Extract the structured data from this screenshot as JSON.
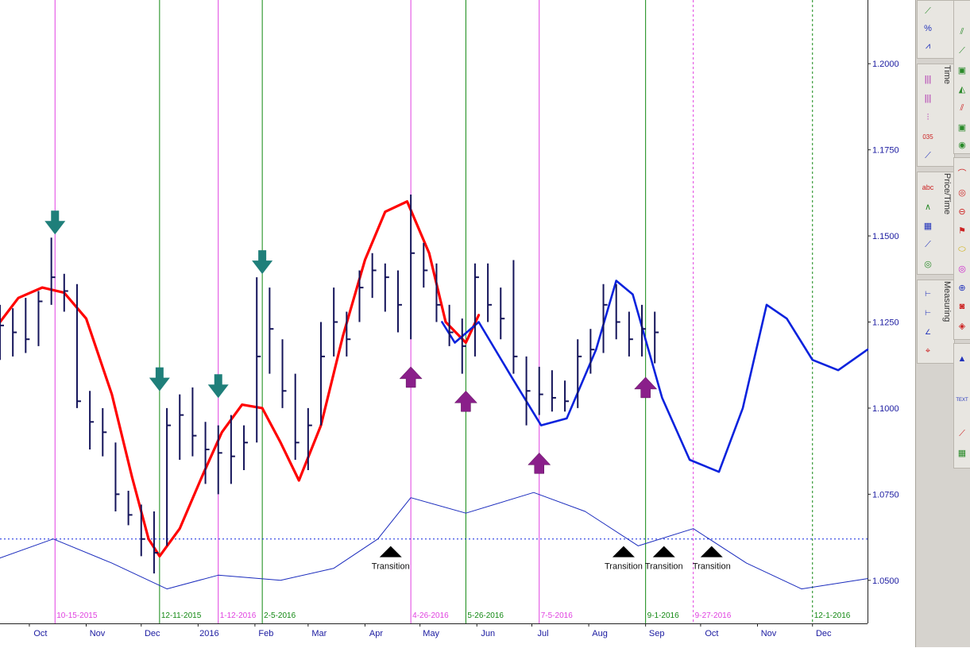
{
  "chart_data": {
    "type": "ohlc",
    "price_axis": {
      "ticks": [
        "1.2000",
        "1.1750",
        "1.1500",
        "1.1250",
        "1.1000",
        "1.0750",
        "1.0500"
      ],
      "ylim": [
        1.0375,
        1.2185
      ]
    },
    "time_axis": {
      "ticks": [
        "Oct",
        "Nov",
        "Dec",
        "2016",
        "Feb",
        "Mar",
        "Apr",
        "May",
        "Jun",
        "Jul",
        "Aug",
        "Sep",
        "Oct",
        "Nov",
        "Dec"
      ],
      "range": [
        "2015-09-15",
        "2016-12-31"
      ]
    },
    "cycle_markers": [
      {
        "date": "2015-10-15",
        "label": "10-15-2015",
        "color": "#e040e0",
        "style": "solid"
      },
      {
        "date": "2015-12-11",
        "label": "12-11-2015",
        "color": "#118811",
        "style": "solid"
      },
      {
        "date": "2016-01-12",
        "label": "1-12-2016",
        "color": "#e040e0",
        "style": "solid"
      },
      {
        "date": "2016-02-05",
        "label": "2-5-2016",
        "color": "#118811",
        "style": "solid"
      },
      {
        "date": "2016-04-26",
        "label": "4-26-2016",
        "color": "#e040e0",
        "style": "solid"
      },
      {
        "date": "2016-05-26",
        "label": "5-26-2016",
        "color": "#118811",
        "style": "solid"
      },
      {
        "date": "2016-07-05",
        "label": "7-5-2016",
        "color": "#e040e0",
        "style": "solid"
      },
      {
        "date": "2016-09-01",
        "label": "9-1-2016",
        "color": "#118811",
        "style": "solid"
      },
      {
        "date": "2016-09-27",
        "label": "9-27-2016",
        "color": "#e040e0",
        "style": "dashed"
      },
      {
        "date": "2016-12-01",
        "label": "12-1-2016",
        "color": "#118811",
        "style": "dashed"
      }
    ],
    "ohlc_weekly": [
      [
        "2015-09-15",
        1.13,
        1.114,
        1.124
      ],
      [
        "2015-09-22",
        1.129,
        1.115,
        1.122
      ],
      [
        "2015-09-29",
        1.132,
        1.116,
        1.12
      ],
      [
        "2015-10-06",
        1.134,
        1.118,
        1.131
      ],
      [
        "2015-10-13",
        1.1495,
        1.13,
        1.138
      ],
      [
        "2015-10-20",
        1.139,
        1.128,
        1.134
      ],
      [
        "2015-10-27",
        1.136,
        1.1,
        1.102
      ],
      [
        "2015-11-03",
        1.105,
        1.088,
        1.096
      ],
      [
        "2015-11-10",
        1.1,
        1.086,
        1.093
      ],
      [
        "2015-11-17",
        1.09,
        1.07,
        1.075
      ],
      [
        "2015-11-24",
        1.076,
        1.066,
        1.069
      ],
      [
        "2015-12-01",
        1.072,
        1.057,
        1.062
      ],
      [
        "2015-12-08",
        1.07,
        1.052,
        1.058
      ],
      [
        "2015-12-15",
        1.1,
        1.06,
        1.095
      ],
      [
        "2015-12-22",
        1.104,
        1.085,
        1.098
      ],
      [
        "2015-12-29",
        1.106,
        1.086,
        1.092
      ],
      [
        "2016-01-05",
        1.096,
        1.078,
        1.088
      ],
      [
        "2016-01-12",
        1.095,
        1.075,
        1.087
      ],
      [
        "2016-01-19",
        1.098,
        1.078,
        1.086
      ],
      [
        "2016-01-26",
        1.095,
        1.082,
        1.09
      ],
      [
        "2016-02-02",
        1.138,
        1.09,
        1.115
      ],
      [
        "2016-02-09",
        1.135,
        1.11,
        1.123
      ],
      [
        "2016-02-16",
        1.12,
        1.1,
        1.105
      ],
      [
        "2016-02-23",
        1.11,
        1.085,
        1.09
      ],
      [
        "2016-03-01",
        1.1,
        1.082,
        1.095
      ],
      [
        "2016-03-08",
        1.125,
        1.095,
        1.115
      ],
      [
        "2016-03-15",
        1.135,
        1.115,
        1.125
      ],
      [
        "2016-03-22",
        1.128,
        1.115,
        1.12
      ],
      [
        "2016-03-29",
        1.14,
        1.125,
        1.135
      ],
      [
        "2016-04-05",
        1.145,
        1.132,
        1.14
      ],
      [
        "2016-04-12",
        1.142,
        1.128,
        1.138
      ],
      [
        "2016-04-19",
        1.14,
        1.122,
        1.13
      ],
      [
        "2016-04-26",
        1.162,
        1.12,
        1.145
      ],
      [
        "2016-05-03",
        1.148,
        1.135,
        1.14
      ],
      [
        "2016-05-10",
        1.142,
        1.125,
        1.13
      ],
      [
        "2016-05-17",
        1.13,
        1.118,
        1.122
      ],
      [
        "2016-05-24",
        1.126,
        1.11,
        1.118
      ],
      [
        "2016-05-31",
        1.142,
        1.115,
        1.138
      ],
      [
        "2016-06-07",
        1.142,
        1.125,
        1.13
      ],
      [
        "2016-06-14",
        1.135,
        1.12,
        1.126
      ],
      [
        "2016-06-21",
        1.143,
        1.11,
        1.115
      ],
      [
        "2016-06-28",
        1.115,
        1.095,
        1.105
      ],
      [
        "2016-07-05",
        1.112,
        1.098,
        1.104
      ],
      [
        "2016-07-12",
        1.111,
        1.099,
        1.103
      ],
      [
        "2016-07-19",
        1.108,
        1.099,
        1.102
      ],
      [
        "2016-07-26",
        1.12,
        1.1,
        1.115
      ],
      [
        "2016-08-02",
        1.123,
        1.11,
        1.117
      ],
      [
        "2016-08-09",
        1.136,
        1.116,
        1.13
      ],
      [
        "2016-08-16",
        1.136,
        1.12,
        1.125
      ],
      [
        "2016-08-23",
        1.128,
        1.115,
        1.12
      ],
      [
        "2016-08-30",
        1.13,
        1.115,
        1.123
      ],
      [
        "2016-09-06",
        1.128,
        1.113,
        1.122
      ]
    ],
    "series": [
      {
        "name": "",
        "color": "#ff0000",
        "width": 3.2,
        "points": [
          [
            "2015-09-15",
            1.125
          ],
          [
            "2015-09-25",
            1.132
          ],
          [
            "2015-10-08",
            1.135
          ],
          [
            "2015-10-20",
            1.1335
          ],
          [
            "2015-11-01",
            1.126
          ],
          [
            "2015-11-15",
            1.104
          ],
          [
            "2015-11-26",
            1.08
          ],
          [
            "2015-12-05",
            1.062
          ],
          [
            "2015-12-11",
            1.057
          ],
          [
            "2015-12-22",
            1.065
          ],
          [
            "2016-01-03",
            1.08
          ],
          [
            "2016-01-14",
            1.093
          ],
          [
            "2016-01-25",
            1.101
          ],
          [
            "2016-02-05",
            1.1
          ],
          [
            "2016-02-15",
            1.09
          ],
          [
            "2016-02-25",
            1.079
          ],
          [
            "2016-03-08",
            1.095
          ],
          [
            "2016-03-20",
            1.121
          ],
          [
            "2016-04-01",
            1.143
          ],
          [
            "2016-04-12",
            1.157
          ],
          [
            "2016-04-24",
            1.16
          ],
          [
            "2016-05-06",
            1.145
          ],
          [
            "2016-05-15",
            1.125
          ],
          [
            "2016-05-26",
            1.119
          ],
          [
            "2016-06-02",
            1.127
          ]
        ]
      },
      {
        "name": "",
        "color": "#0a22dd",
        "width": 2.6,
        "points": [
          [
            "2016-05-13",
            1.125
          ],
          [
            "2016-05-20",
            1.119
          ],
          [
            "2016-06-02",
            1.125
          ],
          [
            "2016-06-20",
            1.109
          ],
          [
            "2016-07-06",
            1.095
          ],
          [
            "2016-07-20",
            1.097
          ],
          [
            "2016-08-05",
            1.117
          ],
          [
            "2016-08-16",
            1.137
          ],
          [
            "2016-08-25",
            1.133
          ],
          [
            "2016-09-10",
            1.103
          ],
          [
            "2016-09-25",
            1.085
          ],
          [
            "2016-10-11",
            1.0815
          ],
          [
            "2016-10-24",
            1.1
          ],
          [
            "2016-11-06",
            1.13
          ],
          [
            "2016-11-17",
            1.126
          ],
          [
            "2016-12-01",
            1.114
          ],
          [
            "2016-12-15",
            1.111
          ],
          [
            "2016-12-31",
            1.117
          ]
        ]
      },
      {
        "name": "",
        "color": "#1a2bbd",
        "width": 1,
        "points": [
          [
            "2015-09-15",
            1.0565
          ],
          [
            "2015-10-14",
            1.062
          ],
          [
            "2015-11-15",
            1.055
          ],
          [
            "2015-12-15",
            1.0475
          ],
          [
            "2016-01-12",
            1.0515
          ],
          [
            "2016-02-15",
            1.05
          ],
          [
            "2016-03-15",
            1.0535
          ],
          [
            "2016-04-08",
            1.062
          ],
          [
            "2016-04-26",
            1.074
          ],
          [
            "2016-05-26",
            1.0695
          ],
          [
            "2016-07-02",
            1.0755
          ],
          [
            "2016-07-30",
            1.07
          ],
          [
            "2016-08-28",
            1.06
          ],
          [
            "2016-09-27",
            1.065
          ],
          [
            "2016-10-26",
            1.055
          ],
          [
            "2016-11-25",
            1.0475
          ],
          [
            "2016-12-31",
            1.0505
          ]
        ]
      }
    ],
    "reference_line": {
      "value": 1.062,
      "color": "#0a22dd",
      "style": "dotted"
    },
    "down_arrows": [
      {
        "date": "2015-10-15",
        "value": 1.1495
      },
      {
        "date": "2015-12-11",
        "value": 1.104
      },
      {
        "date": "2016-01-12",
        "value": 1.102
      },
      {
        "date": "2016-02-05",
        "value": 1.138
      }
    ],
    "up_arrows": [
      {
        "date": "2016-04-26",
        "value": 1.112
      },
      {
        "date": "2016-05-26",
        "value": 1.105
      },
      {
        "date": "2016-07-05",
        "value": 1.087
      },
      {
        "date": "2016-09-01",
        "value": 1.109
      }
    ],
    "transitions": [
      {
        "date": "2016-04-15",
        "value": 1.0595,
        "label": "Transition"
      },
      {
        "date": "2016-08-20",
        "value": 1.0595,
        "label": "Transition"
      },
      {
        "date": "2016-09-11",
        "value": 1.0595,
        "label": "Transition"
      },
      {
        "date": "2016-10-07",
        "value": 1.0595,
        "label": "Transition"
      }
    ]
  },
  "toolbar": {
    "tabs": [
      "Time",
      "Price/Time",
      "Measuring"
    ],
    "colors": {
      "background": "#d6d3ce",
      "panel": "#e8e6e1"
    }
  }
}
